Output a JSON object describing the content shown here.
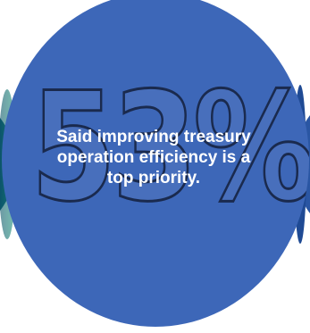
{
  "stat": {
    "value": "53%",
    "statement": "Said improving treasury operation efficiency is a top priority."
  },
  "colors": {
    "main_circle": "#3d67b8",
    "number_outline": "#1a2a4e",
    "text": "#ffffff",
    "left_circle": "#0d5a70",
    "right_circle": "#2a56a3"
  }
}
